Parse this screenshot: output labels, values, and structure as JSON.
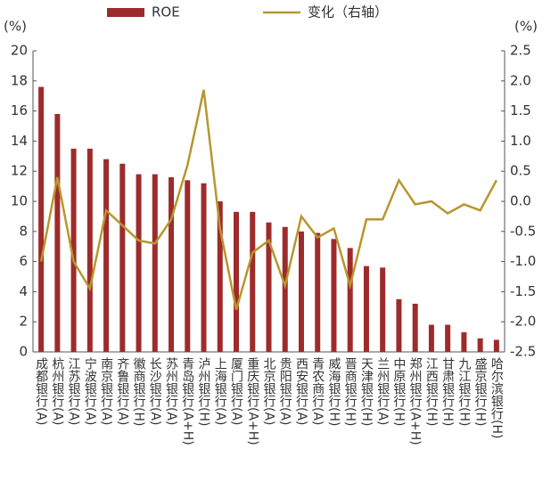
{
  "chart_data": {
    "type": "bar_line",
    "y_unit": "(%)",
    "y2_unit": "(%)",
    "categories": [
      "成都银行(A)",
      "杭州银行(A)",
      "江苏银行(A)",
      "宁波银行(A)",
      "南京银行(A)",
      "齐鲁银行(A)",
      "徽商银行(H)",
      "长沙银行(A)",
      "苏州银行(A)",
      "青岛银行(A+H)",
      "泸州银行(H)",
      "上海银行(A)",
      "厦门银行(A)",
      "重庆银行(A+H)",
      "北京银行(A)",
      "贵阳银行(A)",
      "西安银行(A)",
      "青农商行(A)",
      "威海银行(H)",
      "晋商银行(H)",
      "天津银行(H)",
      "兰州银行(A)",
      "中原银行(H)",
      "郑州银行(A+H)",
      "江西银行(H)",
      "甘肃银行(H)",
      "九江银行(H)",
      "盛京银行(H)",
      "哈尔滨银行(H)"
    ],
    "series": [
      {
        "name": "ROE",
        "type": "bar",
        "color": "#9e2b2b",
        "values": [
          17.6,
          15.8,
          13.5,
          13.5,
          12.8,
          12.5,
          11.8,
          11.8,
          11.6,
          11.4,
          11.2,
          10.0,
          9.3,
          9.3,
          8.6,
          8.3,
          8.0,
          7.9,
          7.5,
          6.9,
          5.7,
          5.6,
          3.5,
          3.2,
          1.8,
          1.8,
          1.3,
          0.9,
          0.8
        ]
      },
      {
        "name": "变化（右轴）",
        "type": "line",
        "axis": "y2",
        "color": "#b8962e",
        "values": [
          -1.0,
          0.4,
          -1.0,
          -1.45,
          -0.15,
          -0.4,
          -0.65,
          -0.7,
          -0.3,
          0.6,
          1.85,
          -0.45,
          -1.8,
          -0.85,
          -0.65,
          -1.4,
          -0.25,
          -0.6,
          -0.45,
          -1.4,
          -0.3,
          -0.3,
          0.35,
          -0.05,
          0.0,
          -0.2,
          -0.05,
          -0.15,
          0.35
        ]
      }
    ],
    "ylim": [
      0,
      20
    ],
    "yticks": [
      0,
      2,
      4,
      6,
      8,
      10,
      12,
      14,
      16,
      18,
      20
    ],
    "y2lim": [
      -2.5,
      2.5
    ],
    "y2ticks": [
      -2.5,
      {
        "value": -2,
        "label": "-2.0"
      },
      -1.5,
      {
        "value": -1,
        "label": "-1.0"
      },
      -0.5,
      {
        "value": 0,
        "label": "0.0"
      },
      0.5,
      {
        "value": 1,
        "label": "1.0"
      },
      1.5,
      {
        "value": 2,
        "label": "2.0"
      },
      2.5
    ],
    "grid": false
  }
}
